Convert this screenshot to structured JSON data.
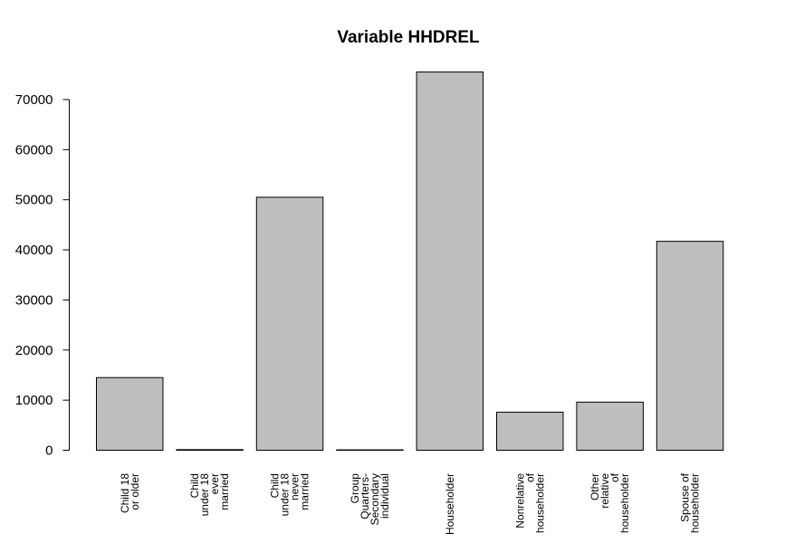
{
  "chart_data": {
    "type": "bar",
    "title": "Variable HHDREL",
    "xlabel": "",
    "ylabel": "",
    "ylim": [
      0,
      75000
    ],
    "yticks": [
      0,
      10000,
      20000,
      30000,
      40000,
      50000,
      60000,
      70000
    ],
    "ytick_labels": [
      "0",
      "10000",
      "20000",
      "30000",
      "40000",
      "50000",
      "60000",
      "70000"
    ],
    "categories": [
      "Child 18 or older",
      "Child under 18 ever married",
      "Child under 18 never married",
      "Group Quarters- Secondary individual",
      "Householder",
      "Nonrelative of householder",
      "Other relative of householder",
      "Spouse of householder"
    ],
    "category_label_lines": [
      [
        "Child 18",
        "or older"
      ],
      [
        "Child",
        "under 18",
        "ever",
        "married"
      ],
      [
        "Child",
        "under 18",
        "never",
        "married"
      ],
      [
        "Group",
        "Quarters-",
        "Secondary",
        "individual"
      ],
      [
        "Householder"
      ],
      [
        "Nonrelative",
        "of",
        "householder"
      ],
      [
        "Other",
        "relative",
        "of",
        "householder"
      ],
      [
        "Spouse of",
        "householder"
      ]
    ],
    "values": [
      14500,
      120,
      50500,
      80,
      75500,
      7600,
      9600,
      41700
    ],
    "bar_fill": "#bebebe",
    "bar_stroke": "#000000",
    "grid": false,
    "legend": "none"
  }
}
